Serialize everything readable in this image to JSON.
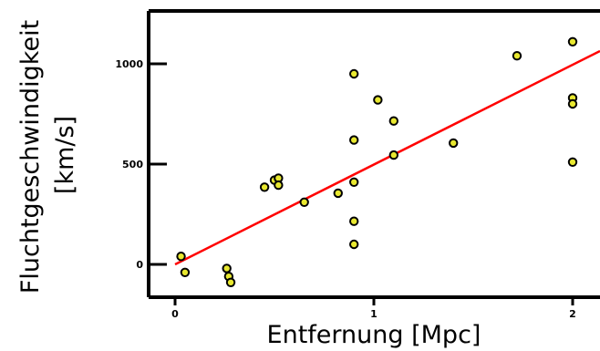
{
  "chart_data": {
    "type": "scatter",
    "title": "",
    "xlabel": "Entfernung [Mpc]",
    "ylabel_line1": "Fluchtgeschwindigkeit",
    "ylabel_line2": "[km/s]",
    "xlim": [
      0,
      2.15
    ],
    "ylim": [
      -200,
      1100
    ],
    "x_ticks": [
      0,
      1,
      2
    ],
    "x_tick_labels": [
      "0",
      "1",
      "2"
    ],
    "y_ticks": [
      0,
      500,
      1000
    ],
    "y_tick_labels": [
      "0",
      "500",
      "1000"
    ],
    "grid": false,
    "legend": "none",
    "marker_fill": "#e8e830",
    "marker_stroke": "#000000",
    "fit_color": "#ff0000",
    "fit_line": {
      "x": [
        0,
        2.15
      ],
      "y": [
        0,
        1070
      ]
    },
    "series": [
      {
        "x": [
          0.03,
          0.05,
          0.26,
          0.27,
          0.28,
          0.45,
          0.5,
          0.52,
          0.52,
          0.65,
          0.82,
          0.9,
          0.9,
          0.9,
          0.9,
          0.9,
          1.02,
          1.1,
          1.1,
          1.4,
          1.72,
          2.0,
          2.0,
          2.0,
          2.0
        ],
        "y": [
          40,
          -40,
          -20,
          -60,
          -90,
          385,
          420,
          430,
          395,
          310,
          355,
          950,
          620,
          410,
          215,
          100,
          820,
          715,
          545,
          605,
          1040,
          1110,
          830,
          800,
          510
        ]
      }
    ]
  }
}
